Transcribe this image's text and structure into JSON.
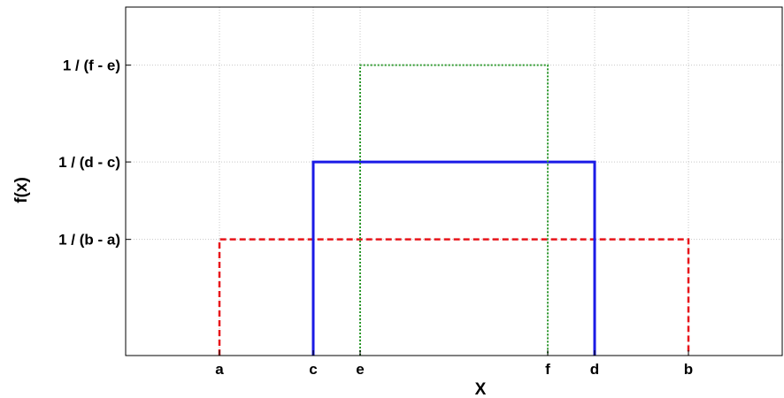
{
  "chart_data": {
    "type": "line",
    "title": "",
    "xlabel": "X",
    "ylabel": "f(x)",
    "grid": true,
    "xlim": [
      0,
      14
    ],
    "ylim": [
      0,
      3.6
    ],
    "xticks": [
      {
        "label": "a",
        "value": 2
      },
      {
        "label": "c",
        "value": 4
      },
      {
        "label": "e",
        "value": 5
      },
      {
        "label": "f",
        "value": 9
      },
      {
        "label": "d",
        "value": 10
      },
      {
        "label": "b",
        "value": 12
      }
    ],
    "yticks": [
      {
        "label": "1 / (b - a)",
        "value": 1.2
      },
      {
        "label": "1 / (d - c)",
        "value": 2.0
      },
      {
        "label": "1 / (f - e)",
        "value": 3.0
      }
    ],
    "series": [
      {
        "color": "#e8141a",
        "line_style": "dashed",
        "x": [
          2,
          2,
          12,
          12
        ],
        "y": [
          0,
          1.2,
          1.2,
          0
        ]
      },
      {
        "color": "#1a1ae6",
        "line_style": "solid",
        "x": [
          4,
          4,
          10,
          10
        ],
        "y": [
          0,
          2.0,
          2.0,
          0
        ]
      },
      {
        "color": "#2e9a2e",
        "line_style": "dotted",
        "x": [
          5,
          5,
          9,
          9
        ],
        "y": [
          0,
          3.0,
          3.0,
          0
        ]
      }
    ]
  }
}
